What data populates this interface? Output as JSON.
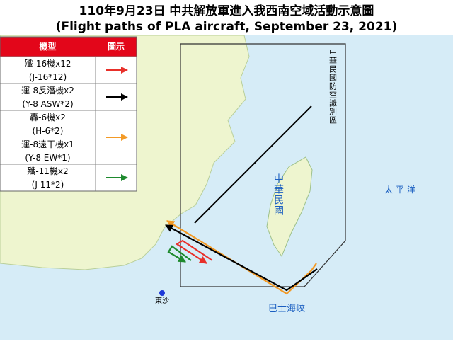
{
  "header": {
    "title": "110年9月23日 中共解放軍進入我西南空域活動示意圖",
    "subtitle": "(Flight paths of PLA aircraft, September 23, 2021)"
  },
  "legend": {
    "columns": [
      "機型",
      "圖示"
    ],
    "rows": [
      {
        "lines": [
          "殲-16機x12",
          "(J-16*12)"
        ],
        "color": "#e8302a"
      },
      {
        "lines": [
          "運-8反潛機x2",
          "(Y-8 ASW*2)"
        ],
        "color": "#000000"
      },
      {
        "lines": [
          "轟-6機x2",
          "(H-6*2)",
          "運-8遠干機x1",
          "(Y-8 EW*1)"
        ],
        "color": "#f39a26"
      },
      {
        "lines": [
          "殲-11機x2",
          "(J-11*2)"
        ],
        "color": "#1e8a2e"
      }
    ]
  },
  "map_labels": {
    "adiz": "中華民國防空識別區",
    "taiwan": "中華民國",
    "pacific": "太 平 洋",
    "bashi": "巴士海峽",
    "dongsha": "東沙"
  }
}
